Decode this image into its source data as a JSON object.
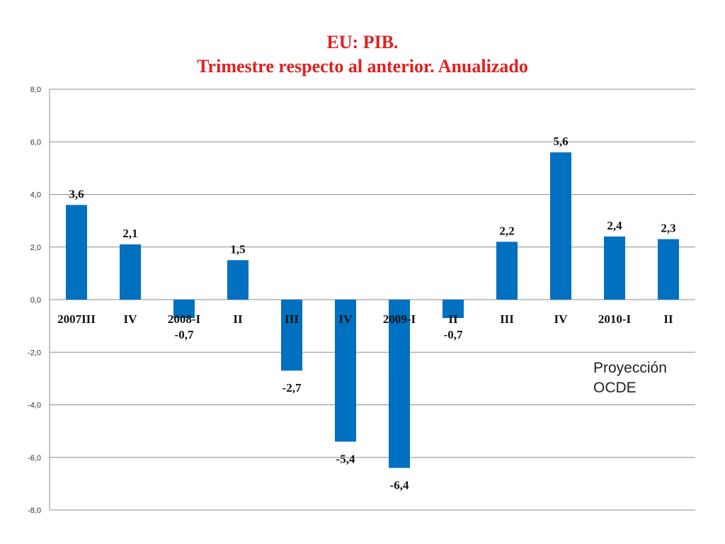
{
  "chart_data": {
    "type": "bar",
    "title": "EU: PIB.",
    "subtitle": "Trimestre respecto al anterior. Anualizado",
    "categories": [
      "2007III",
      "IV",
      "2008-I",
      "II",
      "III",
      "IV",
      "2009-I",
      "II",
      "III",
      "IV",
      "2010-I",
      "II"
    ],
    "values": [
      3.6,
      2.1,
      -0.7,
      1.5,
      -2.7,
      -5.4,
      -6.4,
      -0.7,
      2.2,
      5.6,
      2.4,
      2.3
    ],
    "value_labels": [
      "3,6",
      "2,1",
      "-0,7",
      "1,5",
      "-2,7",
      "-5,4",
      "-6,4",
      "-0,7",
      "2,2",
      "5,6",
      "2,4",
      "2,3"
    ],
    "ylim": [
      -8,
      8
    ],
    "yticks": [
      8,
      6,
      4,
      2,
      0,
      -2,
      -4,
      -6,
      -8
    ],
    "ytick_labels": [
      "8,0",
      "6,0",
      "4,0",
      "2,0",
      "0,0",
      "-2,0",
      "-4,0",
      "-6,0",
      "-8,0"
    ],
    "xlabel": "",
    "ylabel": "",
    "grid": true,
    "legend": "none",
    "bar_color": "#0070c0",
    "title_color": "#e02020",
    "annotation": [
      "Proyección",
      "OCDE"
    ]
  }
}
